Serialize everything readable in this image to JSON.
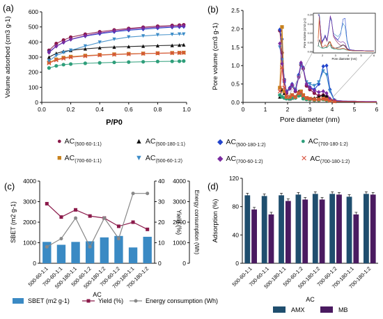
{
  "panel_labels": [
    "(a)",
    "(b)",
    "(c)",
    "(d)"
  ],
  "legend_top": [
    {
      "pre": "AC",
      "sub": "(500-60-1:1)",
      "color": "#8b1a4a",
      "marker": "●"
    },
    {
      "pre": "AC",
      "sub": "(500-180-1:1)",
      "color": "#111111",
      "marker": "▲"
    },
    {
      "pre": "AC",
      "sub": "(500-180-1:2)",
      "color": "#2244cc",
      "marker": "◆"
    },
    {
      "pre": "AC",
      "sub": "(700-180-1:2)",
      "color": "#2e9e7a",
      "marker": "●"
    },
    {
      "pre": "AC",
      "sub": "(700-60-1:1)",
      "color": "#c8821e",
      "marker": "■"
    },
    {
      "pre": "AC",
      "sub": "(500-60-1:2)",
      "color": "#3c8cc8",
      "marker": "▼"
    },
    {
      "pre": "AC",
      "sub": "(700-60-1:2)",
      "color": "#7a2aa0",
      "marker": "◆"
    },
    {
      "pre": "AC",
      "sub": "(700-180-1:2)",
      "color": "#d8503c",
      "marker": "✕"
    }
  ],
  "chart_data": [
    {
      "id": "a",
      "type": "line",
      "xlabel": "P/P0",
      "ylabel": "Volume adsorbed (cm3 g-1)",
      "xlim": [
        0,
        1
      ],
      "ylim": [
        0,
        600
      ],
      "xticks": [
        "0.0",
        "0.2",
        "0.4",
        "0.6",
        "0.8",
        "1.0"
      ],
      "yticks": [
        "0",
        "100",
        "200",
        "300",
        "400",
        "500",
        "600"
      ],
      "x": [
        0.05,
        0.1,
        0.15,
        0.2,
        0.3,
        0.4,
        0.5,
        0.6,
        0.7,
        0.8,
        0.9,
        0.95,
        0.98
      ],
      "series": [
        {
          "values": [
            345,
            390,
            413,
            432,
            452,
            468,
            480,
            490,
            498,
            505,
            510,
            512,
            514
          ],
          "color": "#8b1a4a"
        },
        {
          "values": [
            300,
            325,
            338,
            345,
            355,
            362,
            367,
            370,
            373,
            376,
            378,
            380,
            382
          ],
          "color": "#111111"
        },
        {
          "values": [
            335,
            372,
            397,
            417,
            439,
            455,
            468,
            478,
            485,
            492,
            498,
            500,
            502
          ],
          "color": "#2244cc"
        },
        {
          "values": [
            228,
            242,
            250,
            254,
            259,
            262,
            265,
            267,
            269,
            271,
            272,
            273,
            274
          ],
          "color": "#2e9e7a"
        },
        {
          "values": [
            265,
            285,
            296,
            303,
            310,
            315,
            319,
            322,
            324,
            326,
            328,
            329,
            330
          ],
          "color": "#c8821e"
        },
        {
          "values": [
            275,
            310,
            330,
            345,
            373,
            398,
            418,
            433,
            440,
            447,
            450,
            452,
            452
          ],
          "color": "#3c8cc8"
        },
        {
          "values": [
            330,
            372,
            398,
            418,
            442,
            460,
            473,
            484,
            492,
            498,
            503,
            505,
            507
          ],
          "color": "#7a2aa0"
        },
        {
          "values": [
            260,
            280,
            291,
            299,
            307,
            313,
            317,
            320,
            323,
            325,
            327,
            328,
            329
          ],
          "color": "#d8503c"
        }
      ]
    },
    {
      "id": "b",
      "type": "line",
      "xlabel": "Pore diameter (nm)",
      "ylabel": "Pore volume (cm3 g-1)",
      "xlim": [
        0,
        6
      ],
      "ylim": [
        0,
        2.5
      ],
      "xticks": [
        "0",
        "1",
        "2",
        "3",
        "4",
        "5",
        "6"
      ],
      "yticks": [
        "0.0",
        "0.5",
        "1.0",
        "1.5",
        "2.0",
        "2.5"
      ],
      "x": [
        1.65,
        1.75,
        1.85,
        1.95,
        2.1,
        2.2,
        2.35,
        2.5,
        2.6,
        2.7,
        2.85,
        3.0,
        3.2,
        3.4,
        3.6,
        3.75,
        3.9,
        4.1,
        4.4,
        4.7,
        5.0,
        5.5,
        6.0
      ],
      "series": [
        {
          "values": [
            1.95,
            1.35,
            0.62,
            0.25,
            0.38,
            0.45,
            0.3,
            0.72,
            1.02,
            0.92,
            0.45,
            0.35,
            0.25,
            0.18,
            0.2,
            0.15,
            0.08,
            0.05,
            0.04,
            0.03,
            0.03,
            0.02,
            0.02
          ],
          "color": "#8b1a4a"
        },
        {
          "values": [
            0.15,
            0.35,
            0.25,
            0.12,
            0.1,
            0.12,
            0.15,
            0.3,
            0.28,
            0.12,
            0.1,
            0.1,
            0.12,
            0.15,
            0.2,
            0.18,
            0.08,
            0.03,
            0.02,
            0.02,
            0.02,
            0.01,
            0.01
          ],
          "color": "#111111"
        },
        {
          "values": [
            1.98,
            1.72,
            0.55,
            0.3,
            0.4,
            0.5,
            0.35,
            0.75,
            1.05,
            0.95,
            0.5,
            0.42,
            0.35,
            0.5,
            0.98,
            1.0,
            0.35,
            0.06,
            0.04,
            0.03,
            0.03,
            0.02,
            0.02
          ],
          "color": "#2244cc"
        },
        {
          "values": [
            0.2,
            0.15,
            0.12,
            0.1,
            0.1,
            0.12,
            0.12,
            0.18,
            0.2,
            0.1,
            0.08,
            0.07,
            0.06,
            0.06,
            0.08,
            0.06,
            0.04,
            0.03,
            0.02,
            0.02,
            0.02,
            0.01,
            0.01
          ],
          "color": "#2e9e7a"
        },
        {
          "values": [
            0.4,
            2.05,
            0.3,
            0.15,
            0.15,
            0.2,
            0.15,
            0.25,
            0.3,
            0.2,
            0.12,
            0.1,
            0.08,
            0.08,
            0.1,
            0.08,
            0.05,
            0.03,
            0.02,
            0.02,
            0.02,
            0.01,
            0.01
          ],
          "color": "#c8821e"
        },
        {
          "values": [
            1.5,
            1.15,
            0.6,
            0.3,
            0.35,
            0.45,
            0.35,
            0.7,
            1.0,
            0.9,
            0.55,
            0.5,
            0.45,
            0.55,
            0.85,
            0.75,
            0.3,
            0.05,
            0.04,
            0.03,
            0.03,
            0.02,
            0.02
          ],
          "color": "#3c8cc8"
        },
        {
          "values": [
            1.6,
            1.05,
            0.58,
            0.28,
            0.38,
            0.48,
            0.32,
            0.68,
            1.08,
            0.93,
            0.5,
            0.4,
            0.32,
            0.28,
            0.3,
            0.25,
            0.1,
            0.05,
            0.04,
            0.03,
            0.03,
            0.02,
            0.02
          ],
          "color": "#7a2aa0"
        },
        {
          "values": [
            0.3,
            0.95,
            0.4,
            0.15,
            0.15,
            0.2,
            0.15,
            0.25,
            0.28,
            0.18,
            0.12,
            0.1,
            0.08,
            0.08,
            0.1,
            0.08,
            0.05,
            0.03,
            0.02,
            0.02,
            0.02,
            0.01,
            0.01
          ],
          "color": "#d8503c"
        }
      ],
      "inset": {
        "xlabel": "Pore diameter (nm)",
        "ylabel": "Pore volume (cm3 g-1)",
        "xticks": [
          "2",
          "3",
          "4",
          "5",
          "6"
        ],
        "yticks": [
          "0.00",
          "0.05",
          "0.10",
          "0.15",
          "0.20"
        ],
        "xlim": [
          1.5,
          6
        ],
        "ylim": [
          0,
          0.2
        ]
      }
    },
    {
      "id": "c",
      "type": "bar",
      "xlabel": "AC",
      "ylabel": "SBET (m2 g-1)",
      "ylabel_right": "Yield (%)",
      "ylabel_right2": "Energy consumption (Wh)",
      "categories": [
        "500-60-1:1",
        "700-60-1:1",
        "500-180-1:1",
        "500-60-1:2",
        "500-180-1:2",
        "700-60-1:2",
        "700-180-1:1",
        "700-180-1:2"
      ],
      "ylim": [
        0,
        4000
      ],
      "yticks": [
        "0",
        "1000",
        "2000",
        "3000",
        "4000"
      ],
      "ylim_right": [
        0,
        40
      ],
      "yticks_right": [
        "0",
        "10",
        "20",
        "30",
        "40"
      ],
      "ylim_right2": [
        0,
        4000
      ],
      "yticks_right2": [
        "0",
        "1000",
        "2000",
        "3000",
        "4000"
      ],
      "series": [
        {
          "name": "SBET (m2 g-1)",
          "kind": "bar",
          "values": [
            1040,
            900,
            1040,
            1070,
            1260,
            1330,
            770,
            1290
          ],
          "color": "#3a8ac4"
        },
        {
          "name": "Yield (%)",
          "kind": "line",
          "axis": "right",
          "values": [
            29,
            22.5,
            26,
            23,
            22,
            18,
            20,
            16.5
          ],
          "color": "#8b1a4a"
        },
        {
          "name": "Energy consumption (Wh)",
          "kind": "line",
          "axis": "right2",
          "values": [
            800,
            1200,
            2200,
            800,
            2200,
            1200,
            3400,
            3400
          ],
          "color": "#888888"
        }
      ]
    },
    {
      "id": "d",
      "type": "bar",
      "xlabel": "AC",
      "ylabel": "Adsorption (%)",
      "categories": [
        "500-60-1:1",
        "700-60-1:1",
        "500-180-1:1",
        "500-60-1:2",
        "500-180-1:2",
        "700-60-1:2",
        "700-180-1:1",
        "700-180-1:2"
      ],
      "ylim": [
        0,
        120
      ],
      "yticks": [
        "0",
        "40",
        "80",
        "120"
      ],
      "series": [
        {
          "name": "AMX",
          "values": [
            96,
            95,
            96,
            97,
            98,
            98,
            94,
            98
          ],
          "color": "#1f4e6e"
        },
        {
          "name": "MB",
          "values": [
            76,
            69,
            88,
            90,
            90,
            97,
            69,
            97
          ],
          "color": "#4a1a60"
        }
      ]
    }
  ]
}
